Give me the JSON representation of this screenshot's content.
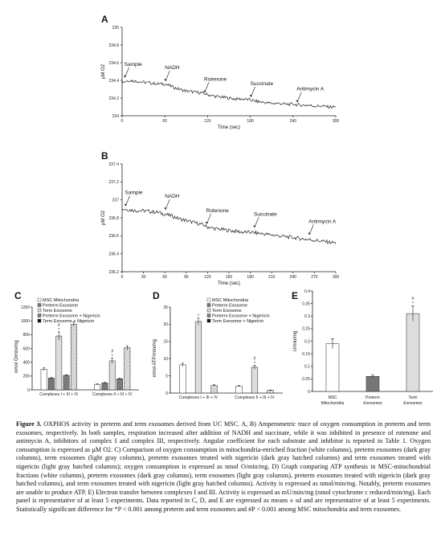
{
  "chart_data": [
    {
      "panel": "A",
      "type": "line",
      "xlabel": "Time (sec)",
      "ylabel": "µM O2",
      "xticks": [
        0,
        60,
        120,
        180,
        240,
        300
      ],
      "yticks": [
        "234",
        "234.2",
        "234.4",
        "234.6",
        "234.8",
        "235"
      ],
      "xlim": [
        0,
        300
      ],
      "ylim": [
        234,
        235
      ],
      "series": [
        {
          "x": [
            0,
            10,
            20,
            30,
            40,
            50,
            60,
            70,
            80,
            90,
            100,
            110,
            120,
            130,
            140,
            150,
            160,
            170,
            180,
            190,
            200,
            210,
            220,
            230,
            240,
            250,
            260,
            270,
            280,
            290,
            300
          ],
          "values": [
            234.38,
            234.4,
            234.39,
            234.38,
            234.37,
            234.36,
            234.36,
            234.33,
            234.3,
            234.28,
            234.27,
            234.26,
            234.24,
            234.22,
            234.21,
            234.2,
            234.19,
            234.19,
            234.18,
            234.16,
            234.15,
            234.14,
            234.14,
            234.13,
            234.13,
            234.12,
            234.12,
            234.11,
            234.11,
            234.1,
            234.1
          ]
        }
      ],
      "annotations": [
        {
          "text": "Sample",
          "x": 3,
          "y": 234.42
        },
        {
          "text": "NADH",
          "x": 60,
          "y": 234.38
        },
        {
          "text": "Rotenone",
          "x": 115,
          "y": 234.25
        },
        {
          "text": "Succinate",
          "x": 180,
          "y": 234.2
        },
        {
          "text": "Antimycin A",
          "x": 245,
          "y": 234.14
        }
      ]
    },
    {
      "panel": "B",
      "type": "line",
      "xlabel": "Time (sec)",
      "ylabel": "µM O2",
      "xticks": [
        0,
        30,
        60,
        90,
        120,
        150,
        180,
        210,
        240,
        270,
        300
      ],
      "yticks": [
        "236.2",
        "236.4",
        "236.6",
        "236.8",
        "237",
        "237.2",
        "237.4"
      ],
      "xlim": [
        0,
        300
      ],
      "ylim": [
        236.2,
        237.4
      ],
      "series": [
        {
          "x": [
            0,
            10,
            20,
            30,
            40,
            50,
            60,
            70,
            80,
            90,
            100,
            110,
            120,
            130,
            140,
            150,
            160,
            170,
            180,
            190,
            200,
            210,
            220,
            230,
            240,
            250,
            260,
            270,
            280,
            290,
            300
          ],
          "values": [
            236.9,
            236.89,
            236.88,
            236.88,
            236.87,
            236.86,
            236.84,
            236.82,
            236.79,
            236.77,
            236.75,
            236.73,
            236.7,
            236.68,
            236.67,
            236.66,
            236.65,
            236.64,
            236.64,
            236.63,
            236.62,
            236.61,
            236.6,
            236.59,
            236.58,
            236.57,
            236.56,
            236.55,
            236.54,
            236.53,
            236.52
          ]
        }
      ],
      "annotations": [
        {
          "text": "Sample",
          "x": 4,
          "y": 236.92
        },
        {
          "text": "NADH",
          "x": 60,
          "y": 236.88
        },
        {
          "text": "Rotenone",
          "x": 118,
          "y": 236.72
        },
        {
          "text": "Succinate",
          "x": 185,
          "y": 236.68
        },
        {
          "text": "Antimycin A",
          "x": 262,
          "y": 236.6
        }
      ]
    },
    {
      "panel": "C",
      "type": "bar",
      "ylabel": "nmol O/min/mg",
      "ylim": [
        0,
        1200
      ],
      "yticks": [
        "0",
        "200",
        "400",
        "600",
        "800",
        "1000",
        "1200"
      ],
      "categories": [
        "Complexes I + III + IV",
        "Complexes II + III + IV"
      ],
      "series": [
        {
          "name": "MSC Mitochondria",
          "values": [
            300,
            80
          ],
          "err": [
            20,
            8
          ]
        },
        {
          "name": "Preterm Exosome",
          "values": [
            170,
            100
          ],
          "err": [
            10,
            8
          ]
        },
        {
          "name": "Term Exosome",
          "values": [
            780,
            420
          ],
          "err": [
            60,
            40
          ]
        },
        {
          "name": "Preterm Exosome + Nigericin",
          "values": [
            210,
            160
          ],
          "err": [
            10,
            10
          ]
        },
        {
          "name": "Term Exosome  + Nigericin",
          "values": [
            950,
            610
          ],
          "err": [
            30,
            30
          ]
        }
      ],
      "markers": [
        {
          "text": "#",
          "cat": 0,
          "series": 2
        },
        {
          "text": "*",
          "cat": 0,
          "series": 2
        },
        {
          "text": "#",
          "cat": 1,
          "series": 2
        },
        {
          "text": "*",
          "cat": 1,
          "series": 2
        }
      ]
    },
    {
      "panel": "D",
      "type": "bar",
      "ylabel": "nmol ATP/min/mg",
      "ylim": [
        0,
        25
      ],
      "yticks": [
        "0",
        "5",
        "10",
        "15",
        "20",
        "25"
      ],
      "categories": [
        "Complexes I + III + IV",
        "Complexes II + III + IV"
      ],
      "series": [
        {
          "name": "MSC Mitochondria",
          "values": [
            8.2,
            2.0
          ],
          "err": [
            0.5,
            0.2
          ]
        },
        {
          "name": "Preterm Exosome",
          "values": [
            0,
            0
          ],
          "err": [
            0,
            0
          ]
        },
        {
          "name": "Term Exosome",
          "values": [
            20.8,
            7.5
          ],
          "err": [
            1.0,
            0.6
          ]
        },
        {
          "name": "Preterm Exosome + Nigericin",
          "values": [
            0,
            0
          ],
          "err": [
            0,
            0
          ]
        },
        {
          "name": "Term Exosome  + Nigericin",
          "values": [
            2.2,
            0.8
          ],
          "err": [
            0.2,
            0.1
          ]
        }
      ],
      "markers": [
        {
          "text": "*",
          "cat": 0,
          "series": 2
        },
        {
          "text": "#",
          "cat": 1,
          "series": 2
        },
        {
          "text": "*",
          "cat": 1,
          "series": 2
        }
      ]
    },
    {
      "panel": "E",
      "type": "bar",
      "ylabel": "U/min/mg",
      "ylim": [
        0,
        0.4
      ],
      "yticks": [
        "0",
        "0.05",
        "0.1",
        "0.15",
        "0.2",
        "0.25",
        "0.3",
        "0.35",
        "0.4"
      ],
      "categories": [
        "MSC Mitochondria",
        "Preterm Exosomes",
        "Term Exosomes"
      ],
      "values": [
        0.19,
        0.06,
        0.31
      ],
      "err": [
        0.02,
        0.005,
        0.03
      ],
      "markers": [
        {
          "text": "#",
          "cat": 2
        },
        {
          "text": "*",
          "cat": 2
        }
      ]
    }
  ],
  "caption": {
    "label": "Figure 3.",
    "text": "OXPHOS activity in preterm and term exosomes derived from UC MSC. A, B) Amperometric trace of oxygen consumption in preterm and term exosomes, respectively. In both samples, respiration increased after addition of NADH and succinate, while it was inhibited in presence of rotenone and antimycin A, inhibitors of complex I and complex III, respectively. Angular coefficient for each substrate and inhibitor is reported in Table 1. Oxygen consumption is expressed as µM O2. C) Comparison of oxygen consumption in mitochondria-enriched fraction (white columns), preterm exosomes (dark gray columns), term exosomes (light gray columns), preterm exosomes treated with nigericin (dark gray hatched columns) and term exosomes treated with nigericin (light gray hatched columns); oxygen consumption is expressed as nmol O/min/mg. D) Graph comparing ATP synthesis in MSC-mitochondrial fractions (white columns), preterm exosomes (dark gray columns), term exosomes (light gray columns), preterm exosomes treated with nigericin (dark gray hatched columns), and term exosomes treated with nigericin (light gray hatched columns). Activity is expressed as nmol/min/mg. Notably, preterm exosomes are unable to produce ATP. E) Electron transfer between complexes I and III. Activity is expressed as mU/min/mg (nmol cytochrome c reduced/min/mg). Each panel is representative of at least 5 experiments. Data reported in C, D, and E are expressed as means ± sd and are representative of at least 5 experiments. Statistically significant difference for *P < 0.001 among preterm and term exosomes and #P < 0.001 among MSC mitochondria and term exosomes."
  }
}
